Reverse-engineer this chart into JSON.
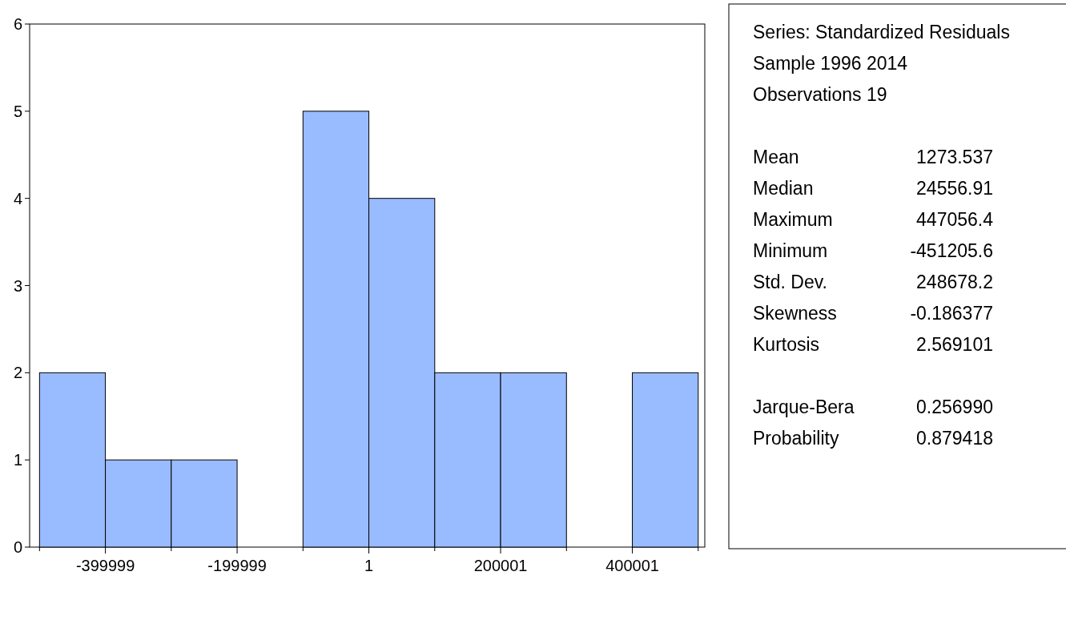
{
  "chart_data": {
    "type": "histogram",
    "bins": [
      -499999,
      -399999,
      -299999,
      -199999,
      -99999,
      1,
      100001,
      200001,
      300001,
      400001,
      500001
    ],
    "values": [
      2,
      1,
      1,
      0,
      5,
      4,
      2,
      2,
      0,
      2
    ],
    "color": "#99bbff",
    "xlim": [
      -515000,
      510000
    ],
    "xticks": [
      {
        "value": -499999,
        "label": null
      },
      -399999,
      {
        "value": -299999,
        "label": null
      },
      -199999,
      {
        "value": -99999,
        "label": null
      },
      1,
      {
        "value": 100001,
        "label": null
      },
      200001,
      {
        "value": 300001,
        "label": null
      },
      400001,
      {
        "value": 500001,
        "label": null
      }
    ],
    "ylim": [
      0,
      6
    ],
    "yticks": [
      0,
      1,
      2,
      3,
      4,
      5,
      6
    ],
    "grid": false,
    "annotations": [
      "Series: Standardized Residuals",
      "Sample 1996 2014",
      "Observations 19",
      "Mean",
      "1273.537",
      "Median",
      "24556.91",
      "Maximum",
      "447056.4",
      "Minimum",
      "-451205.6",
      "Std. Dev.",
      "248678.2",
      "Skewness",
      "-0.186377",
      "Kurtosis",
      "2.569101",
      "Jarque-Bera",
      "0.256990",
      "Probability",
      "0.879418"
    ]
  }
}
